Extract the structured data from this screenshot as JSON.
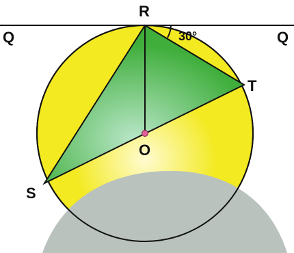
{
  "labels": {
    "q_left": "Q",
    "q_right": "Q",
    "r": "R",
    "t": "T",
    "s": "S",
    "o": "O",
    "angle": "30°"
  },
  "colors": {
    "circle_fill": "#f3ea22",
    "circle_highlight": "#fffbd0",
    "triangle_fill": "#3fae3b",
    "triangle_highlight": "#b9e6c8",
    "center_point": "#e0609a",
    "shadow": "#b9c2bd",
    "line": "#111111"
  }
}
